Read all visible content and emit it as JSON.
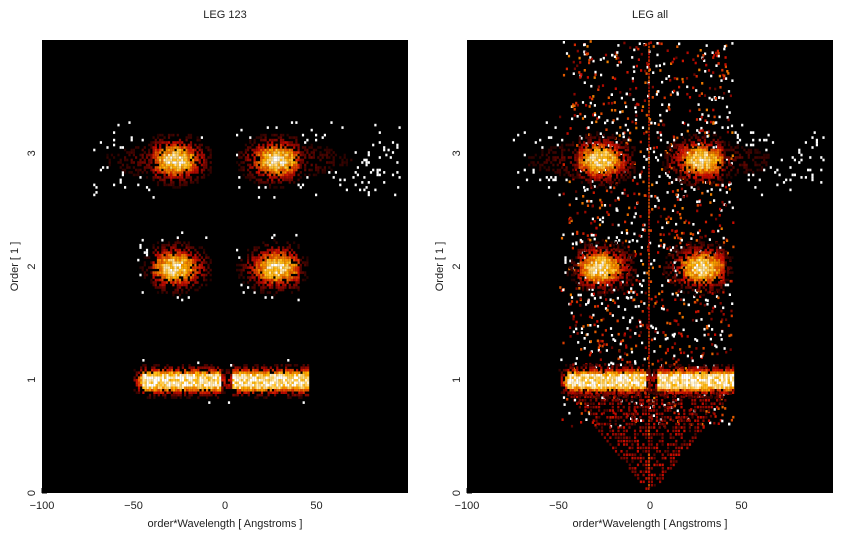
{
  "chart_data": [
    {
      "type": "heatmap",
      "title": "LEG 123",
      "xlabel": "order*Wavelength [ Angstroms ]",
      "ylabel": "Order [ 1 ]",
      "xlim": [
        -100,
        100
      ],
      "ylim": [
        0,
        4
      ],
      "xticks": [
        -100,
        -50,
        0,
        50
      ],
      "yticks": [
        0,
        1,
        2,
        3
      ],
      "colormap": "black-red-yellow-white",
      "bands": [
        {
          "order": 1,
          "x_range": [
            -50,
            45
          ],
          "y_center": 1.0,
          "peak": "bright"
        },
        {
          "order": 2,
          "x_range": [
            -48,
            45
          ],
          "y_center": 2.0,
          "gap": [
            -8,
            5
          ]
        },
        {
          "order": 3,
          "x_range": [
            -72,
            95
          ],
          "y_center": 2.95,
          "gap": [
            -8,
            5
          ]
        }
      ]
    },
    {
      "type": "heatmap",
      "title": "LEG all",
      "xlabel": "order*Wavelength [ Angstroms ]",
      "ylabel": "Order [ 1 ]",
      "xlim": [
        -100,
        100
      ],
      "ylim": [
        0,
        4
      ],
      "xticks": [
        -100,
        -50,
        0,
        50
      ],
      "yticks": [
        0,
        1,
        2,
        3
      ],
      "colormap": "black-red-yellow-white",
      "bands": [
        {
          "order": 1,
          "x_range": [
            -50,
            45
          ],
          "y_center": 1.0,
          "peak": "bright"
        },
        {
          "order": 2,
          "x_range": [
            -48,
            45
          ],
          "y_center": 2.0,
          "gap": [
            -8,
            5
          ]
        },
        {
          "order": 3,
          "x_range": [
            -75,
            95
          ],
          "y_center": 2.95,
          "gap": [
            -8,
            5
          ]
        }
      ]
    }
  ]
}
